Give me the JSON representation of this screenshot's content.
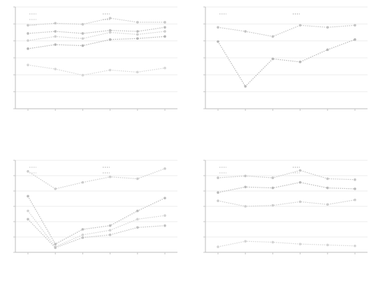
{
  "chart_data": [
    {
      "type": "line",
      "title": "",
      "xlabel": "",
      "ylabel": "",
      "x": [
        1,
        2,
        3,
        4,
        5,
        6
      ],
      "categories": [
        "",
        "",
        "",
        "",
        "",
        ""
      ],
      "yticks": [
        "",
        "",
        "",
        "",
        "",
        "",
        ""
      ],
      "ylim": [
        0,
        10
      ],
      "grid": true,
      "legend_position": "top",
      "caption": "",
      "series": [
        {
          "name": "",
          "color": "#c8c8c8",
          "values": [
            8.2,
            8.4,
            8.3,
            8.9,
            8.5,
            8.5
          ]
        },
        {
          "name": "",
          "color": "#bdbdbd",
          "values": [
            7.4,
            7.6,
            7.4,
            7.7,
            7.6,
            8.0
          ]
        },
        {
          "name": "",
          "color": "#cfcfcf",
          "values": [
            6.7,
            7.1,
            6.9,
            7.5,
            7.3,
            7.6
          ]
        },
        {
          "name": "",
          "color": "#b5b5b5",
          "values": [
            5.9,
            6.3,
            6.2,
            6.8,
            6.9,
            7.1
          ]
        },
        {
          "name": "",
          "color": "#d6d6d6",
          "values": [
            4.3,
            3.9,
            3.3,
            3.8,
            3.6,
            4.0
          ]
        }
      ]
    },
    {
      "type": "line",
      "title": "",
      "xlabel": "",
      "ylabel": "",
      "x": [
        1,
        2,
        3,
        4,
        5,
        6
      ],
      "categories": [
        "",
        "",
        "",
        "",
        "",
        ""
      ],
      "yticks": [
        "",
        "",
        "",
        "",
        "",
        "",
        ""
      ],
      "ylim": [
        0,
        10
      ],
      "grid": true,
      "legend_position": "top",
      "caption": "",
      "series": [
        {
          "name": "",
          "color": "#c4c4c4",
          "values": [
            8.0,
            7.6,
            7.1,
            8.2,
            8.0,
            8.2
          ]
        },
        {
          "name": "",
          "color": "#b8b8b8",
          "values": [
            6.6,
            2.2,
            4.9,
            4.6,
            5.8,
            6.8
          ]
        }
      ]
    },
    {
      "type": "line",
      "title": "",
      "xlabel": "",
      "ylabel": "",
      "x": [
        1,
        2,
        3,
        4,
        5,
        6
      ],
      "categories": [
        "",
        "",
        "",
        "",
        "",
        ""
      ],
      "yticks": [
        "",
        "",
        "",
        "",
        "",
        "",
        ""
      ],
      "ylim": [
        0,
        10
      ],
      "grid": true,
      "legend_position": "top-left",
      "caption": "",
      "series": [
        {
          "name": "",
          "color": "#cccccc",
          "values": [
            8.8,
            6.9,
            7.6,
            8.2,
            8.0,
            9.1
          ]
        },
        {
          "name": "",
          "color": "#bcbcbc",
          "values": [
            6.1,
            0.9,
            2.5,
            2.9,
            4.5,
            5.9
          ]
        },
        {
          "name": "",
          "color": "#d3d3d3",
          "values": [
            4.5,
            0.6,
            1.9,
            2.4,
            3.6,
            4.0
          ]
        },
        {
          "name": "",
          "color": "#c2c2c2",
          "values": [
            3.6,
            0.5,
            1.6,
            1.9,
            2.7,
            2.9
          ]
        }
      ]
    },
    {
      "type": "line",
      "title": "",
      "xlabel": "",
      "ylabel": "",
      "x": [
        1,
        2,
        3,
        4,
        5,
        6
      ],
      "categories": [
        "",
        "",
        "",
        "",
        "",
        ""
      ],
      "yticks": [
        "",
        "",
        "",
        "",
        "",
        "",
        ""
      ],
      "ylim": [
        0,
        10
      ],
      "grid": true,
      "legend_position": "top",
      "caption": "",
      "series": [
        {
          "name": "",
          "color": "#c6c6c6",
          "values": [
            8.1,
            8.3,
            8.1,
            8.9,
            8.0,
            7.9
          ]
        },
        {
          "name": "",
          "color": "#bababa",
          "values": [
            6.5,
            7.1,
            7.0,
            7.6,
            7.0,
            6.9
          ]
        },
        {
          "name": "",
          "color": "#cdcdcd",
          "values": [
            5.6,
            5.0,
            5.1,
            5.5,
            5.2,
            5.7
          ]
        },
        {
          "name": "",
          "color": "#d4d4d4",
          "values": [
            0.6,
            1.2,
            1.1,
            0.9,
            0.8,
            0.7
          ]
        }
      ]
    }
  ]
}
